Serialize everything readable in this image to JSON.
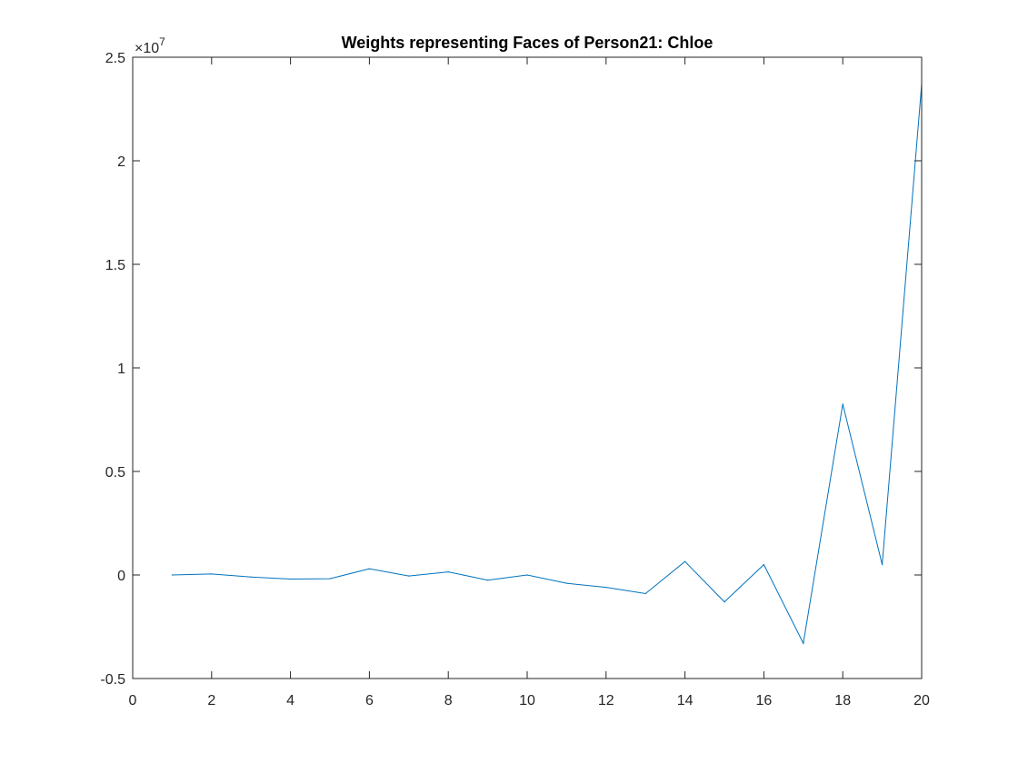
{
  "chart_data": {
    "type": "line",
    "title": "Weights representing Faces of Person21: Chloe",
    "xlabel": "",
    "ylabel": "",
    "xlim": [
      0,
      20
    ],
    "ylim": [
      -0.5,
      2.5
    ],
    "y_multiplier_base": "×10",
    "y_multiplier_exponent": "7",
    "x_ticks": [
      0,
      2,
      4,
      6,
      8,
      10,
      12,
      14,
      16,
      18,
      20
    ],
    "x_tick_labels": [
      "0",
      "2",
      "4",
      "6",
      "8",
      "10",
      "12",
      "14",
      "16",
      "18",
      "20"
    ],
    "y_ticks": [
      -0.5,
      0,
      0.5,
      1,
      1.5,
      2,
      2.5
    ],
    "y_tick_labels": [
      "-0.5",
      "0",
      "0.5",
      "1",
      "1.5",
      "2",
      "2.5"
    ],
    "grid": false,
    "series": [
      {
        "color": "#0072bd",
        "x": [
          1,
          2,
          3,
          4,
          5,
          6,
          7,
          8,
          9,
          10,
          11,
          12,
          13,
          14,
          15,
          16,
          17,
          18,
          19,
          20
        ],
        "values": [
          0.0,
          0.005,
          -0.01,
          -0.02,
          -0.018,
          0.03,
          -0.005,
          0.015,
          -0.025,
          0.0,
          -0.04,
          -0.06,
          -0.09,
          0.065,
          -0.13,
          0.05,
          -0.33,
          0.825,
          0.05,
          2.37
        ]
      }
    ]
  }
}
